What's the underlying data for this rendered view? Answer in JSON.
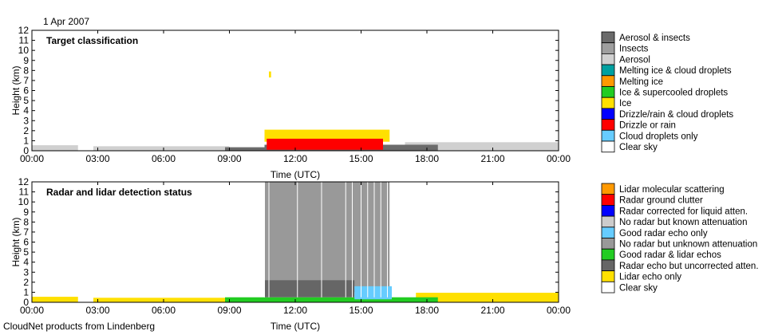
{
  "date": "1 Apr 2007",
  "footer": "CloudNet products from Lindenberg",
  "chart_data": [
    {
      "type": "heatmap",
      "title": "Target classification",
      "xlabel": "Time (UTC)",
      "ylabel": "Height (km)",
      "xlim": [
        0,
        24
      ],
      "ylim": [
        0,
        12
      ],
      "x_ticks": [
        "00:00",
        "03:00",
        "06:00",
        "09:00",
        "12:00",
        "15:00",
        "18:00",
        "21:00",
        "00:00"
      ],
      "y_ticks": [
        0,
        1,
        2,
        3,
        4,
        5,
        6,
        7,
        8,
        9,
        10,
        11,
        12
      ],
      "legend": [
        {
          "label": "Aerosol & insects",
          "color": "#6b6b6b"
        },
        {
          "label": "Insects",
          "color": "#9e9e9e"
        },
        {
          "label": "Aerosol",
          "color": "#d0d0d0"
        },
        {
          "label": "Melting ice & cloud droplets",
          "color": "#00a0a0"
        },
        {
          "label": "Melting ice",
          "color": "#ff9900"
        },
        {
          "label": "Ice & supercooled droplets",
          "color": "#22cc22"
        },
        {
          "label": "Ice",
          "color": "#ffe000"
        },
        {
          "label": "Drizzle/rain & cloud droplets",
          "color": "#0000ff"
        },
        {
          "label": "Drizzle or rain",
          "color": "#ff0000"
        },
        {
          "label": "Cloud droplets only",
          "color": "#66ccff"
        },
        {
          "label": "Clear sky",
          "color": "#ffffff"
        }
      ],
      "regions": [
        {
          "class": "Aerosol",
          "x": [
            0,
            2.1
          ],
          "y": [
            0,
            0.55
          ]
        },
        {
          "class": "Aerosol",
          "x": [
            2.8,
            9.0
          ],
          "y": [
            0,
            0.45
          ]
        },
        {
          "class": "Aerosol",
          "x": [
            17.0,
            24.0
          ],
          "y": [
            0,
            0.85
          ]
        },
        {
          "class": "Aerosol & insects",
          "x": [
            8.8,
            10.6
          ],
          "y": [
            0,
            0.35
          ]
        },
        {
          "class": "Aerosol & insects",
          "x": [
            10.6,
            18.5
          ],
          "y": [
            0,
            0.6
          ]
        },
        {
          "class": "Ice",
          "x": [
            10.6,
            16.3
          ],
          "y": [
            0.9,
            2.1
          ]
        },
        {
          "class": "Drizzle or rain",
          "x": [
            10.7,
            16.0
          ],
          "y": [
            0.1,
            1.2
          ]
        },
        {
          "class": "Ice",
          "x": [
            10.8,
            10.9
          ],
          "y": [
            7.3,
            7.9
          ]
        }
      ]
    },
    {
      "type": "heatmap",
      "title": "Radar and lidar detection status",
      "xlabel": "Time (UTC)",
      "ylabel": "Height (km)",
      "xlim": [
        0,
        24
      ],
      "ylim": [
        0,
        12
      ],
      "x_ticks": [
        "00:00",
        "03:00",
        "06:00",
        "09:00",
        "12:00",
        "15:00",
        "18:00",
        "21:00",
        "00:00"
      ],
      "y_ticks": [
        0,
        1,
        2,
        3,
        4,
        5,
        6,
        7,
        8,
        9,
        10,
        11,
        12
      ],
      "legend": [
        {
          "label": "Lidar molecular scattering",
          "color": "#ff9900"
        },
        {
          "label": "Radar ground clutter",
          "color": "#ff0000"
        },
        {
          "label": "Radar corrected for liquid atten.",
          "color": "#0000ff"
        },
        {
          "label": "No radar but known attenuation",
          "color": "#cccccc"
        },
        {
          "label": "Good radar echo only",
          "color": "#66ccff"
        },
        {
          "label": "No radar but unknown attenuation",
          "color": "#999999"
        },
        {
          "label": "Good radar & lidar echos",
          "color": "#22cc22"
        },
        {
          "label": "Radar echo but uncorrected atten.",
          "color": "#666666"
        },
        {
          "label": "Lidar echo only",
          "color": "#ffe000"
        },
        {
          "label": "Clear sky",
          "color": "#ffffff"
        }
      ],
      "regions": [
        {
          "class": "Lidar echo only",
          "x": [
            0,
            2.1
          ],
          "y": [
            0,
            0.55
          ]
        },
        {
          "class": "Lidar echo only",
          "x": [
            2.8,
            9.0
          ],
          "y": [
            0,
            0.45
          ]
        },
        {
          "class": "Lidar echo only",
          "x": [
            17.5,
            24.0
          ],
          "y": [
            0,
            0.95
          ]
        },
        {
          "class": "Good radar & lidar echos",
          "x": [
            8.8,
            18.5
          ],
          "y": [
            0,
            0.5
          ]
        },
        {
          "class": "No radar but unknown attenuation",
          "x": [
            10.6,
            16.3
          ],
          "y": [
            1.0,
            12.0
          ]
        },
        {
          "class": "Radar echo but uncorrected atten.",
          "x": [
            10.6,
            14.7
          ],
          "y": [
            0.5,
            2.2
          ]
        },
        {
          "class": "Good radar echo only",
          "x": [
            14.7,
            16.4
          ],
          "y": [
            0.3,
            1.6
          ]
        }
      ]
    }
  ]
}
